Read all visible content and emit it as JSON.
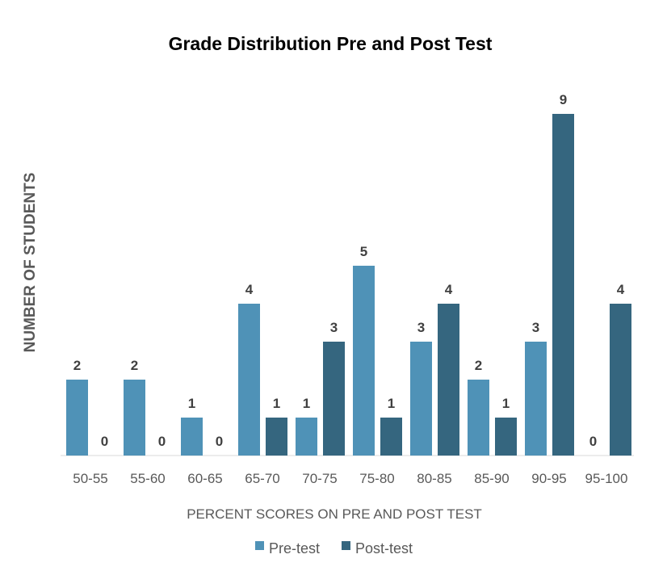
{
  "chart_data": {
    "type": "bar",
    "title": "Grade Distribution Pre and Post Test",
    "xlabel": "PERCENT SCORES ON PRE AND POST TEST",
    "ylabel": "NUMBER OF STUDENTS",
    "categories": [
      "50-55",
      "55-60",
      "60-65",
      "65-70",
      "70-75",
      "75-80",
      "80-85",
      "85-90",
      "90-95",
      "95-100"
    ],
    "series": [
      {
        "name": "Pre-test",
        "color": "#4f92b7",
        "values": [
          2,
          2,
          1,
          4,
          1,
          5,
          3,
          2,
          3,
          0
        ]
      },
      {
        "name": "Post-test",
        "color": "#35667f",
        "values": [
          0,
          0,
          0,
          1,
          3,
          1,
          4,
          1,
          9,
          4
        ]
      }
    ],
    "ylim": [
      0,
      9
    ],
    "grid": false,
    "legend": "bottom"
  }
}
